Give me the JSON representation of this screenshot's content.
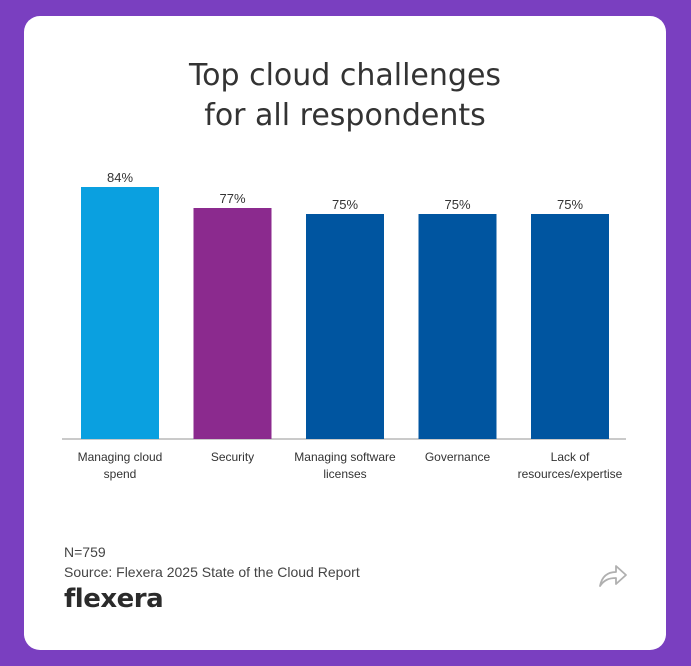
{
  "header": {
    "title_line1": "Top cloud challenges",
    "title_line2": "for all respondents"
  },
  "chart_data": {
    "type": "bar",
    "title": "Top cloud challenges for all respondents",
    "categories": [
      [
        "Managing cloud",
        "spend"
      ],
      [
        "Security"
      ],
      [
        "Managing software",
        "licenses"
      ],
      [
        "Governance"
      ],
      [
        "Lack of",
        "resources/expertise"
      ]
    ],
    "values": [
      84,
      77,
      75,
      75,
      75
    ],
    "data_labels": [
      "84%",
      "77%",
      "75%",
      "75%",
      "75%"
    ],
    "colors": [
      "#0aa0e0",
      "#8b2a8e",
      "#0055a0",
      "#0055a0",
      "#0055a0"
    ],
    "ylim": [
      0,
      100
    ],
    "grid": false,
    "legend": "none"
  },
  "footer": {
    "sample_size": "N=759",
    "source": "Source: Flexera 2025 State of the Cloud Report"
  },
  "brand": {
    "logo_text": "flexera"
  },
  "share": {
    "icon": "share-arrow-icon"
  }
}
